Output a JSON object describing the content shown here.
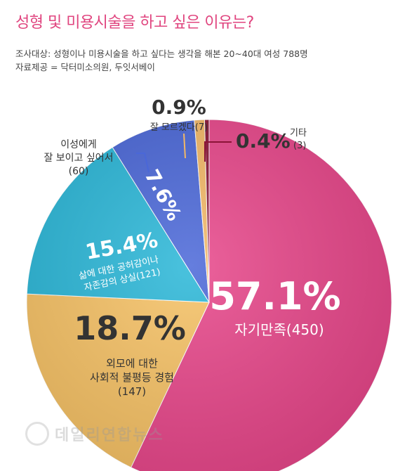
{
  "title": "성형 및 미용시술을 하고 싶은 이유는?",
  "subject": "조사대상: 성형이나 미용시술을 하고 싶다는 생각을 해본 20~40대 여성 788명",
  "source": "자료제공 = 닥터미소의원, 두잇서베이",
  "watermark": "데일리연합뉴스",
  "chart_data": {
    "type": "pie",
    "title": "성형 및 미용시술을 하고 싶은 이유는?",
    "total": 788,
    "slices": [
      {
        "label": "자기만족",
        "percent": "57.1%",
        "count": "(450)",
        "value": 57.1,
        "color": "#e8468a"
      },
      {
        "label": "외모에 대한 사회적 불평등 경험",
        "lines": [
          "외모에 대한",
          "사회적 불평등 경험"
        ],
        "percent": "18.7%",
        "count": "(147)",
        "value": 18.7,
        "color": "#f7c265"
      },
      {
        "label": "삶에 대한 공허감이나 자존감의 상실",
        "lines": [
          "삶에 대한 공허감이나",
          "자존감의 상실(121)"
        ],
        "percent": "15.4%",
        "count": "(121)",
        "value": 15.4,
        "color": "#2ab7d8"
      },
      {
        "label": "이성에게 잘 보이고 싶어서",
        "lines": [
          "이성에게",
          "잘 보이고 싶어서",
          "(60)"
        ],
        "percent": "7.6%",
        "count": "(60)",
        "value": 7.6,
        "color": "#4a67d8"
      },
      {
        "label": "잘 모르겠다",
        "lines": [
          "잘 모르겠다(7)"
        ],
        "percent": "0.9%",
        "count": "(7)",
        "value": 0.9,
        "color": "#f3b866"
      },
      {
        "label": "기타",
        "lines": [
          "기타",
          "(3)"
        ],
        "percent": "0.4%",
        "count": "(3)",
        "value": 0.4,
        "color": "#8a1436"
      }
    ]
  }
}
